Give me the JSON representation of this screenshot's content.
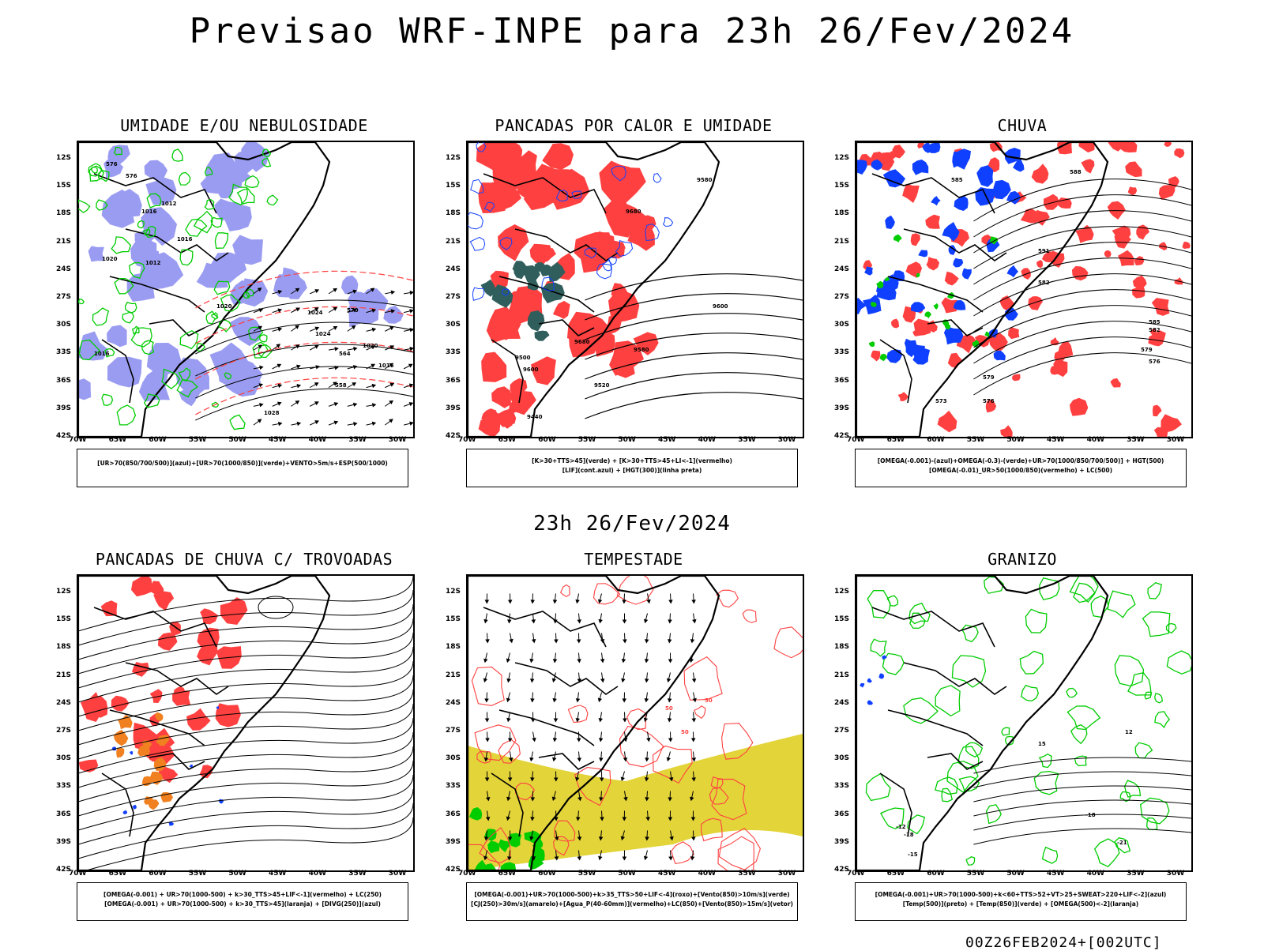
{
  "header": {
    "title": "Previsao WRF-INPE  para 23h 26/Fev/2024"
  },
  "middle": {
    "subtitle": "23h 26/Fev/2024"
  },
  "footer": {
    "run_tag": "00Z26FEB2024+[002UTC]"
  },
  "axes": {
    "lat_labels": [
      "12S",
      "15S",
      "18S",
      "21S",
      "24S",
      "27S",
      "30S",
      "33S",
      "36S",
      "39S",
      "42S"
    ],
    "lon_labels": [
      "70W",
      "65W",
      "60W",
      "55W",
      "50W",
      "45W",
      "40W",
      "35W",
      "30W"
    ]
  },
  "colors": {
    "blue_shade": "#9a9cf2",
    "green": "#00cc00",
    "red": "#ff4040",
    "orange": "#f08020",
    "yellow": "#e3d43a",
    "dark_teal": "#2f5e5c",
    "blue": "#1040ff"
  },
  "panels": [
    {
      "title": "UMIDADE E/OU NEBULOSIDADE",
      "legend": [
        "[UR>70(850/700/500)](azul)+[UR>70(1000/850)](verde)+VENTO>5m/s+ESP(500/1000)"
      ],
      "contour_labels": [
        "1016",
        "1012",
        "1016",
        "1020",
        "1012",
        "1016",
        "1020",
        "1024",
        "1024",
        "1020",
        "1016",
        "1028",
        "576",
        "576",
        "570",
        "564",
        "558"
      ]
    },
    {
      "title": "PANCADAS POR CALOR E UMIDADE",
      "legend": [
        "[K>30+TTS>45](verde) + [K>30+TTS>45+LI<-1](vermelho)",
        "[LIF](cont.azul) + [HGT(300)](linha preta)"
      ],
      "contour_labels": [
        "9580",
        "9680",
        "9600",
        "9680",
        "9580",
        "9600",
        "9520",
        "9500",
        "9440"
      ]
    },
    {
      "title": "CHUVA",
      "legend": [
        "[OMEGA(-0.001)-(azul)+OMEGA(-0.3)-(verde)+UR>70(1000/850/700/500)] + HGT(500)",
        "[OMEGA(-0.01)_UR>50(1000/850)(vermelho) + LC(500)"
      ],
      "contour_labels": [
        "588",
        "585",
        "591",
        "582",
        "579",
        "576",
        "573",
        "585",
        "582",
        "579",
        "576"
      ]
    },
    {
      "title": "PANCADAS DE CHUVA C/ TROVOADAS",
      "legend": [
        "[OMEGA(-0.001) + UR>70(1000-500) + k>30_TTS>45+LIF<-1](vermelho) + LC(250)",
        "[OMEGA(-0.001) + UR>70(1000-500) + k>30_TTS>45](laranja) + [DIVG(250)](azul)"
      ],
      "contour_labels": []
    },
    {
      "title": "TEMPESTADE",
      "legend": [
        "[OMEGA(-0.001)+UR>70(1000-500)+k>35_TTS>50+LIF<-4](roxo)+[Vento(850)>10m/s](verde)",
        "[CJ(250)>30m/s](amarelo)+[Agua_P(40-60mm)](vermelho)+LC(850)+[Vento(850)>15m/s](vetor)"
      ],
      "contour_labels": [
        "50",
        "50",
        "50"
      ]
    },
    {
      "title": "GRANIZO",
      "legend": [
        "[OMEGA(-0.001)+UR>70(1000-500)+k<60+TTS>52+VT>25+SWEAT>220+LIF<-2](azul)",
        "[Temp(500)](preto) + [Temp(850)](verde) + [OMEGA(500)<-2](laranja)"
      ],
      "contour_labels": [
        "-12",
        "-15",
        "-18",
        "-21",
        "-18",
        "15",
        "12"
      ]
    }
  ]
}
